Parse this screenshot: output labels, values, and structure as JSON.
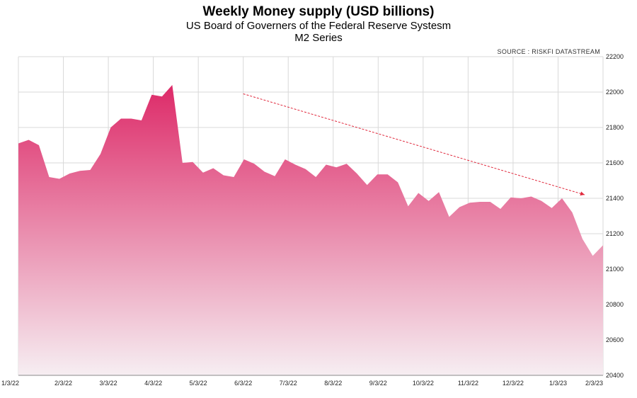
{
  "chart_data": {
    "type": "area",
    "title": "Weekly Money supply (USD billions)",
    "subtitle": "US Board of Governers of the Federal Reserve Systesm",
    "subtitle2": "M2 Series",
    "source": "SOURCE : RISKFI DATASTREAM",
    "ylim": [
      20400,
      22200
    ],
    "y_ticks": [
      20400,
      20600,
      20800,
      21000,
      21200,
      21400,
      21600,
      21800,
      22000,
      22200
    ],
    "x_ticks": [
      "1/3/22",
      "2/3/22",
      "3/3/22",
      "4/3/22",
      "5/3/22",
      "6/3/22",
      "7/3/22",
      "8/3/22",
      "9/3/22",
      "10/3/22",
      "11/3/22",
      "12/3/22",
      "1/3/23",
      "2/3/23"
    ],
    "grid": true,
    "series": [
      {
        "values": [
          21710,
          21730,
          21700,
          21520,
          21510,
          21540,
          21555,
          21560,
          21650,
          21800,
          21850,
          21850,
          21840,
          21985,
          21975,
          22040,
          21600,
          21605,
          21545,
          21570,
          21530,
          21520,
          21620,
          21595,
          21550,
          21525,
          21620,
          21590,
          21565,
          21520,
          21590,
          21575,
          21595,
          21540,
          21475,
          21535,
          21535,
          21490,
          21355,
          21430,
          21385,
          21435,
          21295,
          21350,
          21375,
          21380,
          21380,
          21340,
          21405,
          21400,
          21410,
          21385,
          21345,
          21400,
          21320,
          21170,
          21075,
          21135
        ]
      }
    ],
    "trend_arrow": {
      "from": [
        "6/3/22",
        21990
      ],
      "to": [
        "2/3/23",
        21420
      ],
      "color": "#e0283c"
    },
    "colors": {
      "top": "#dd2a68",
      "bottom": "#f6eef2",
      "grid": "#d9d9d9"
    }
  }
}
